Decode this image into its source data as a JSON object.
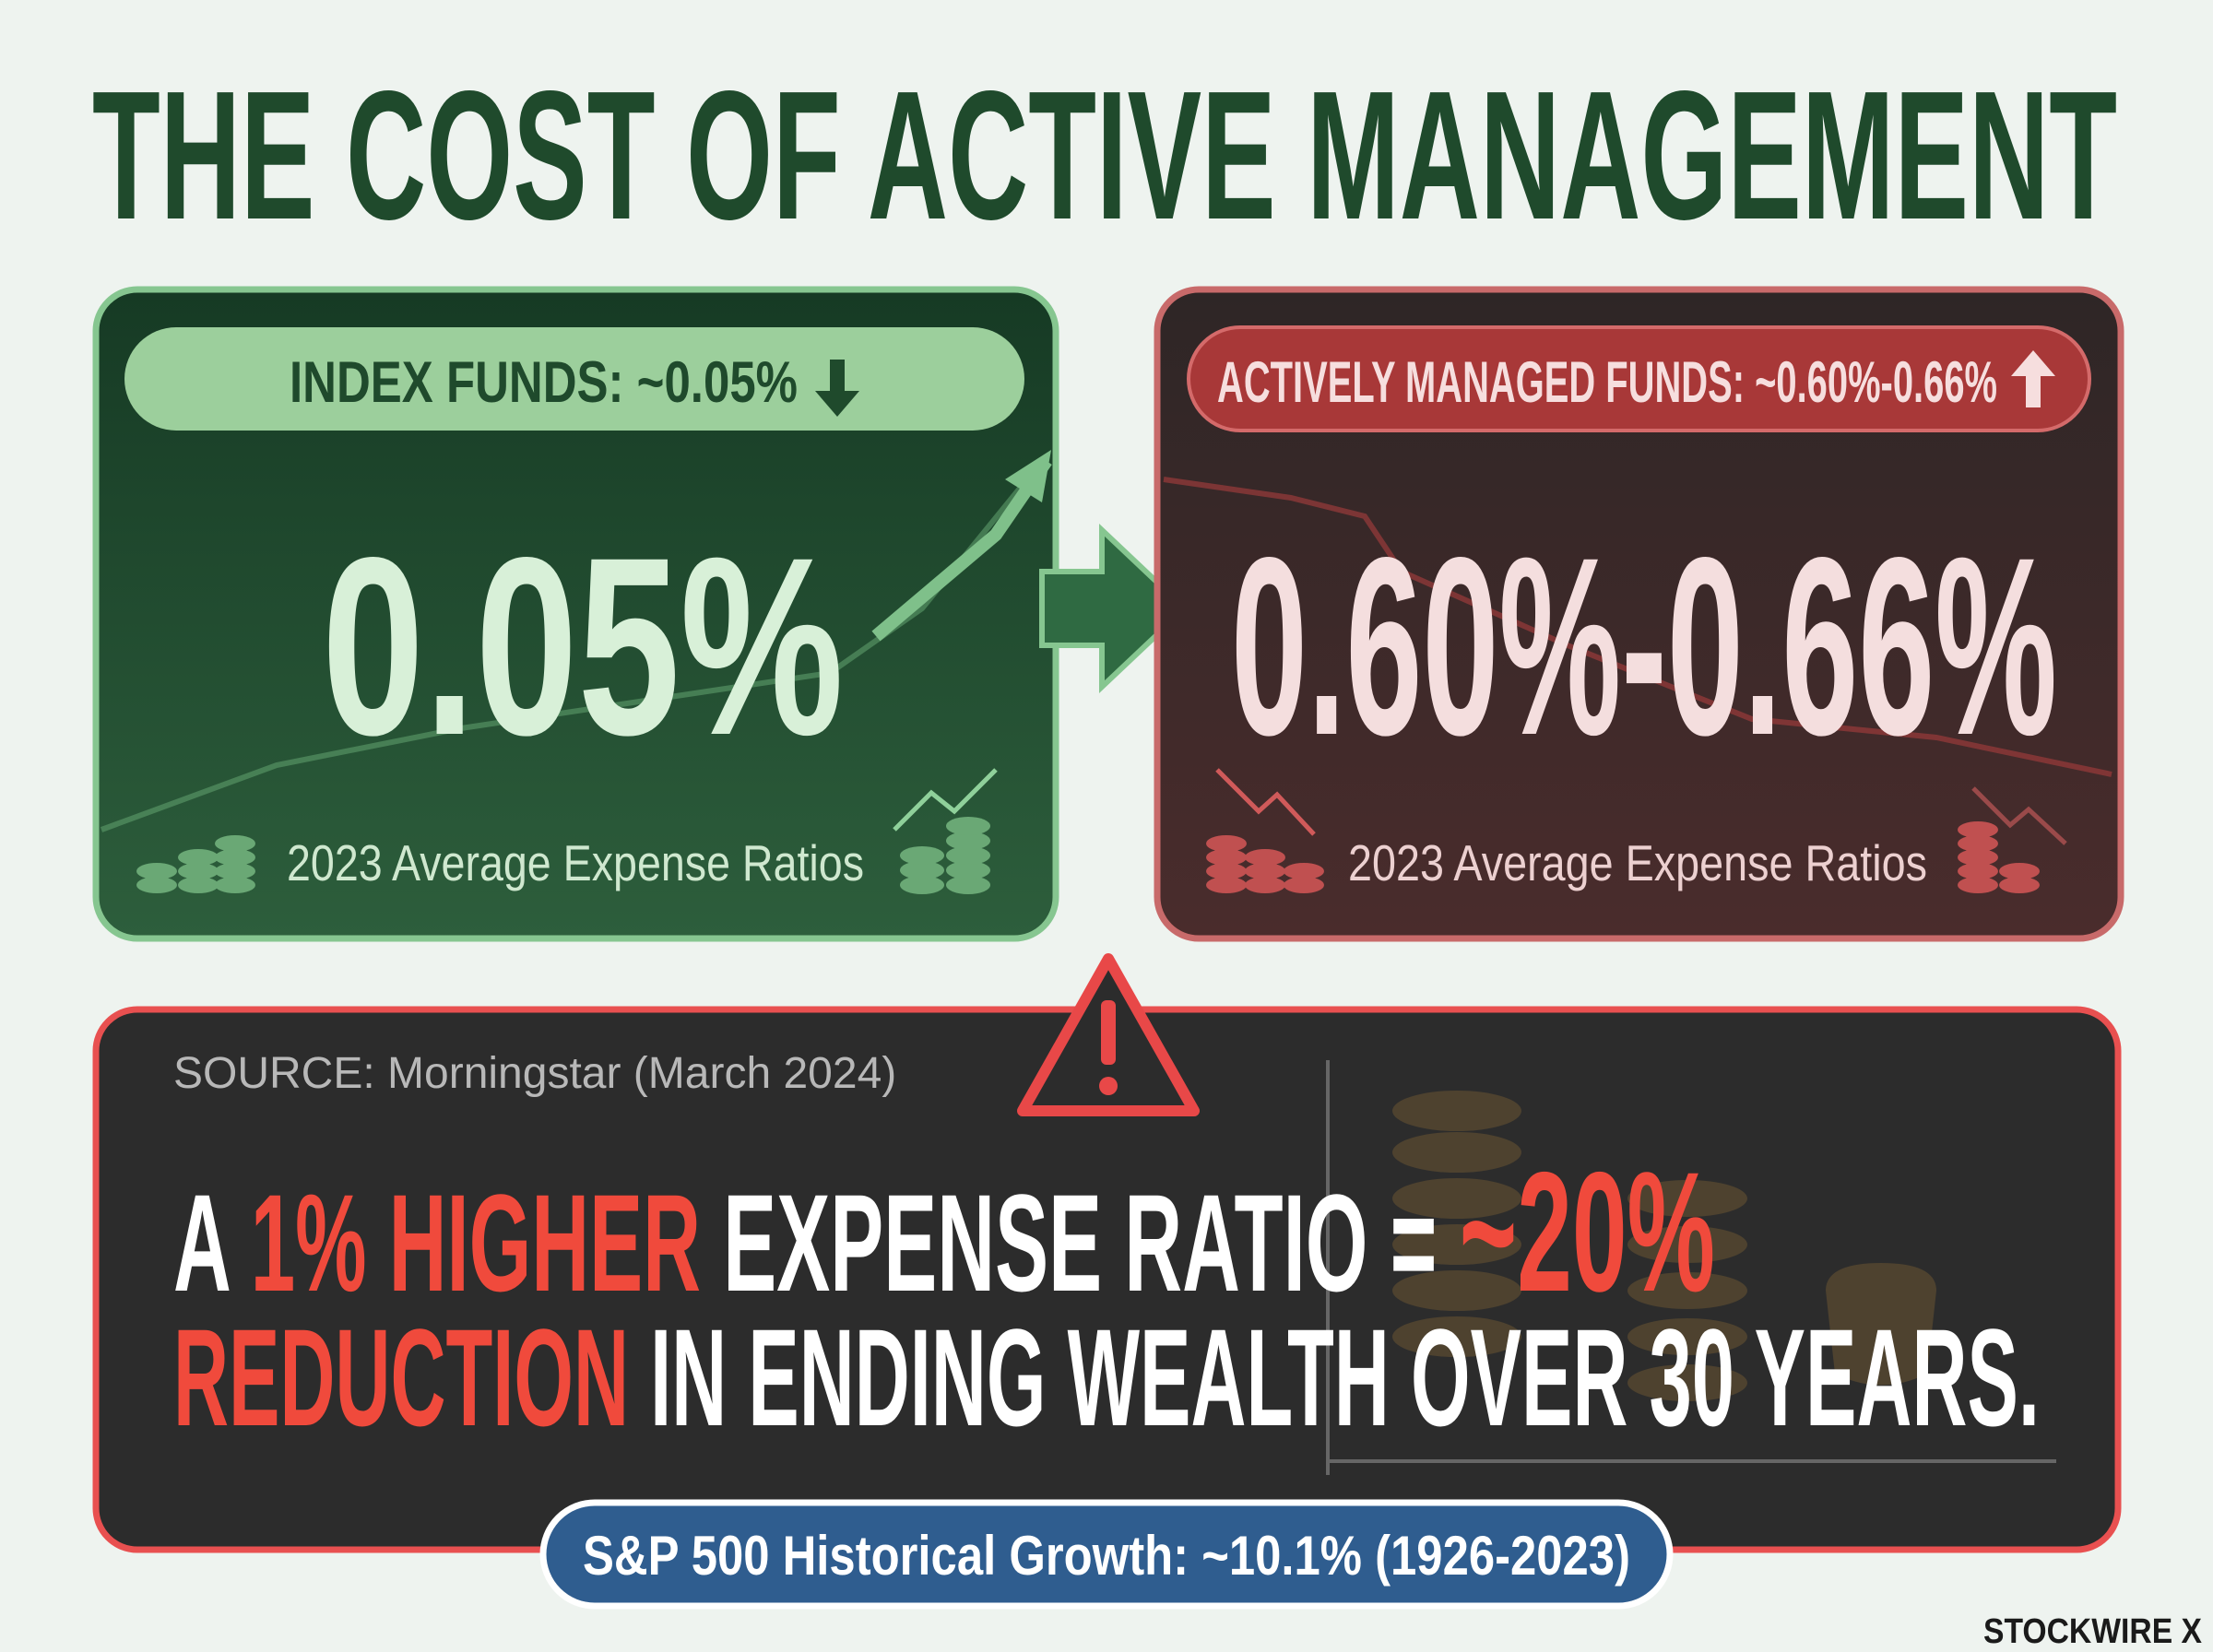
{
  "title": "THE COST OF ACTIVE MANAGEMENT",
  "cards": [
    {
      "pill": "INDEX FUNDS: ~0.05%",
      "value": "0.05%",
      "caption": "2023 Average Expense Ratios"
    },
    {
      "pill": "ACTIVELY MANAGED FUNDS: ~0.60%-0.66%",
      "value": "0.60%-0.66%",
      "caption": "2023 Average Expense Ratios"
    }
  ],
  "callout": {
    "source": "SOURCE: Morningstar (March 2024)",
    "line1": [
      "A",
      "1% HIGHER",
      "EXPENSE RATIO =",
      "~20%"
    ],
    "line2": [
      "REDUCTION",
      "IN ENDING WEALTH OVER 30 YEARS."
    ]
  },
  "footer_pill": "S&P 500 Historical Growth: ~10.1% (1926-2023)",
  "brand": "STOCKWIRE X"
}
